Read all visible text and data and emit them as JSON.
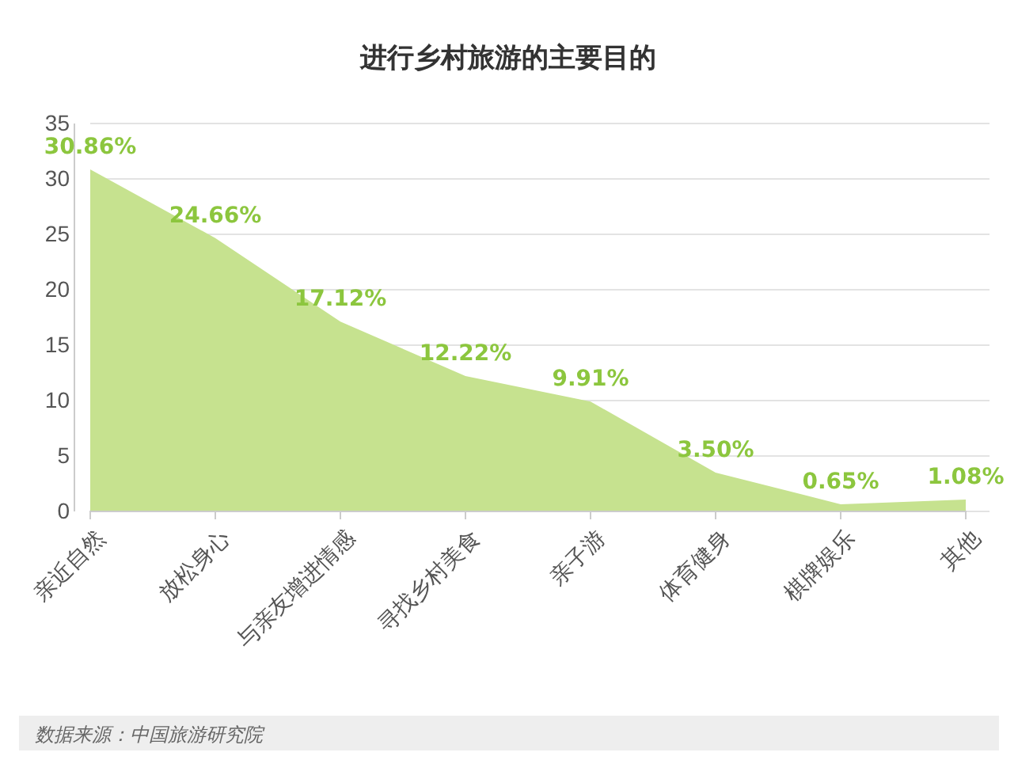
{
  "chart_data": {
    "type": "area",
    "title": "进行乡村旅游的主要目的",
    "categories": [
      "亲近自然",
      "放松身心",
      "与亲友增进情感",
      "寻找乡村美食",
      "亲子游",
      "体育健身",
      "棋牌娱乐",
      "其他"
    ],
    "series": [
      {
        "color": "#c6e28f",
        "values": [
          30.86,
          24.66,
          17.12,
          12.22,
          9.91,
          3.5,
          0.65,
          1.08
        ],
        "value_labels": [
          "30.86%",
          "24.66%",
          "17.12%",
          "12.22%",
          "9.91%",
          "3.50%",
          "0.65%",
          "1.08%"
        ]
      }
    ],
    "ylim": [
      0,
      35
    ],
    "yticks": [
      0,
      5,
      10,
      15,
      20,
      25,
      30,
      35
    ],
    "grid": "y",
    "annotations": [
      "数据来源：中国旅游研究院"
    ]
  }
}
